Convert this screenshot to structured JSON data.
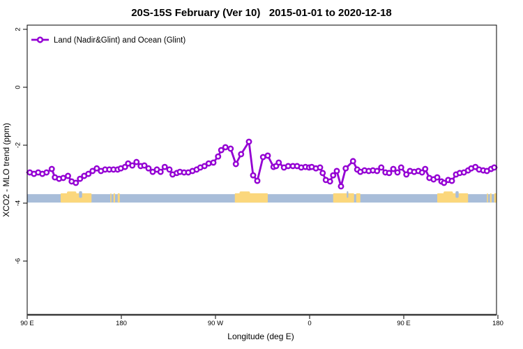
{
  "title": "20S-15S February (Ver 10)   2015-01-01 to 2020-12-18",
  "legend": {
    "label": "Land (Nadir&Glint) and Ocean (Glint)",
    "symbol": "open-circle-on-line",
    "color": "#9400d3"
  },
  "axes": {
    "x": {
      "label": "Longitude (deg E)",
      "tick_lons": [
        90,
        180,
        270,
        360,
        450,
        540
      ],
      "tick_labels": [
        "90 E",
        "180",
        "90 W",
        "0",
        "90 E",
        "180"
      ]
    },
    "y": {
      "label": "XCO2 - MLO trend (ppm)",
      "ticks": [
        2,
        0,
        -2,
        -4,
        -6
      ],
      "tick_labels": [
        "2",
        "0",
        "-2",
        "-4",
        "-6"
      ]
    }
  },
  "colors": {
    "series": "#9400d3",
    "marker_fill": "#ffffff",
    "ocean": "#a8bdd9",
    "land": "#fbd77c",
    "frame": "#000000",
    "baseline": "#3a3a3a"
  },
  "chart_data": {
    "type": "line",
    "title": "20S-15S February (Ver 10)   2015-01-01 to 2020-12-18",
    "xlabel": "Longitude (deg E)",
    "ylabel": "XCO2 - MLO trend (ppm)",
    "xlim": [
      90,
      538.67
    ],
    "ylim": [
      -7.855,
      2.145
    ],
    "grid": false,
    "legend_position": "top-left-inside",
    "series": [
      {
        "name": "Land (Nadir&Glint) and Ocean (Glint)",
        "color": "#9400d3",
        "marker": "open-circle",
        "x": [
          92.5,
          96.5,
          100.5,
          104.5,
          108.5,
          113.5,
          116.5,
          120.5,
          124.5,
          129,
          132.5,
          136.5,
          140.5,
          144.5,
          148.5,
          152.5,
          156.5,
          160.5,
          164.5,
          168.5,
          172.5,
          176.5,
          179.5,
          183.5,
          186.5,
          190.5,
          194.5,
          198.5,
          202,
          206,
          210,
          214,
          217.5,
          221.5,
          226,
          229,
          233,
          236,
          240,
          244,
          248,
          252,
          255.5,
          259.5,
          263.5,
          268,
          272.5,
          275.5,
          279.5,
          284.5,
          289.5,
          294.5,
          302,
          306,
          310,
          315.5,
          320,
          325.5,
          328,
          330.5,
          335.5,
          339.5,
          344,
          348,
          352,
          356,
          359.5,
          362,
          366,
          370,
          372.5,
          375.5,
          379.5,
          382.5,
          386,
          390,
          394.5,
          401.5,
          405.5,
          408.5,
          412.5,
          416.5,
          420.5,
          424.5,
          428.5,
          432.5,
          436,
          440,
          444,
          447.5,
          452.5,
          456,
          460,
          464,
          467.5,
          470.5,
          474.5,
          478.5,
          482,
          486,
          488.5,
          492.5,
          496,
          500,
          503.5,
          507.5,
          511.5,
          514.5,
          518.5,
          522,
          526,
          529.5,
          533.5,
          536.5
        ],
        "y": [
          -2.94,
          -2.99,
          -2.94,
          -2.99,
          -2.94,
          -2.82,
          -3.11,
          -3.16,
          -3.13,
          -3.06,
          -3.25,
          -3.3,
          -3.16,
          -3.06,
          -2.99,
          -2.89,
          -2.8,
          -2.89,
          -2.84,
          -2.84,
          -2.84,
          -2.84,
          -2.8,
          -2.75,
          -2.63,
          -2.7,
          -2.58,
          -2.72,
          -2.7,
          -2.8,
          -2.92,
          -2.84,
          -2.92,
          -2.75,
          -2.84,
          -3.01,
          -2.96,
          -2.92,
          -2.94,
          -2.94,
          -2.89,
          -2.84,
          -2.77,
          -2.72,
          -2.63,
          -2.6,
          -2.39,
          -2.17,
          -2.07,
          -2.12,
          -2.65,
          -2.31,
          -1.88,
          -3.04,
          -3.23,
          -2.41,
          -2.36,
          -2.75,
          -2.72,
          -2.6,
          -2.77,
          -2.72,
          -2.72,
          -2.72,
          -2.77,
          -2.75,
          -2.77,
          -2.75,
          -2.8,
          -2.77,
          -2.96,
          -3.2,
          -3.25,
          -3.04,
          -2.89,
          -3.42,
          -2.8,
          -2.55,
          -2.84,
          -2.92,
          -2.87,
          -2.89,
          -2.87,
          -2.89,
          -2.77,
          -2.94,
          -2.96,
          -2.82,
          -2.94,
          -2.77,
          -3.01,
          -2.89,
          -2.92,
          -2.89,
          -2.94,
          -2.82,
          -3.13,
          -3.18,
          -3.11,
          -3.25,
          -3.3,
          -3.2,
          -3.23,
          -3.01,
          -2.96,
          -2.94,
          -2.87,
          -2.8,
          -2.75,
          -2.84,
          -2.87,
          -2.89,
          -2.82,
          -2.77
        ]
      }
    ],
    "map_strip": {
      "description": "land-ocean strip along latitude band",
      "ppm_top": -3.69,
      "ppm_bottom": -3.98,
      "land_ppm_top": -3.66,
      "ocean_color": "#a8bdd9",
      "land_color": "#fbd77c",
      "land_segments_lon": [
        [
          122,
          151.5
        ],
        [
          169.5,
          170.5
        ],
        [
          172.5,
          174
        ],
        [
          176.5,
          178.5
        ],
        [
          288.5,
          320
        ],
        [
          382.5,
          402.5
        ],
        [
          404.5,
          408.5
        ],
        [
          482,
          511.5
        ],
        [
          529.5,
          530.5
        ],
        [
          532.5,
          534
        ],
        [
          536.5,
          538.5
        ]
      ],
      "notches_lon": [
        [
          139.5,
          142.5
        ],
        [
          395.5,
          397
        ],
        [
          499.5,
          502.5
        ]
      ],
      "bumps_lon": [
        [
          128,
          137
        ],
        [
          293,
          303
        ],
        [
          488,
          497
        ]
      ]
    }
  }
}
